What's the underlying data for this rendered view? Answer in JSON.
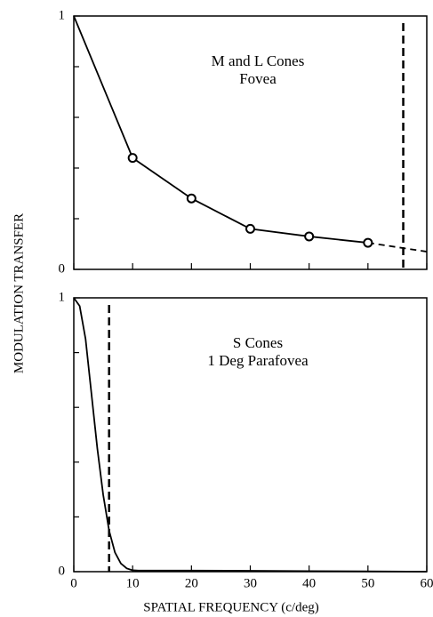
{
  "axis_labels": {
    "y": "MODULATION TRANSFER",
    "x": "SPATIAL FREQUENCY (c/deg)"
  },
  "chart_data": [
    {
      "type": "line",
      "annotation": [
        "M and L Cones",
        "Fovea"
      ],
      "xlim": [
        0,
        60
      ],
      "xticks": [
        0,
        10,
        20,
        30,
        40,
        50,
        60
      ],
      "xtick_labels": false,
      "ylim": [
        0,
        1
      ],
      "yticks": [
        0,
        1
      ],
      "yminor": [
        0.2,
        0.4,
        0.6,
        0.8
      ],
      "series": [
        {
          "color": "#000000",
          "style": "solid",
          "x": [
            0,
            10,
            20,
            30,
            40,
            50
          ],
          "values": [
            1,
            0.44,
            0.28,
            0.16,
            0.13,
            0.105
          ]
        },
        {
          "color": "#000000",
          "style": "dashed",
          "x": [
            50,
            60
          ],
          "values": [
            0.105,
            0.07
          ]
        }
      ],
      "points": {
        "marker": "circle",
        "x": [
          10,
          20,
          30,
          40,
          50
        ],
        "values": [
          0.44,
          0.28,
          0.16,
          0.13,
          0.105
        ]
      },
      "vlines": [
        {
          "x": 56,
          "style": "dashed"
        }
      ]
    },
    {
      "type": "line",
      "annotation": [
        "S Cones",
        "1 Deg Parafovea"
      ],
      "xlim": [
        0,
        60
      ],
      "xticks": [
        0,
        10,
        20,
        30,
        40,
        50,
        60
      ],
      "xtick_labels": true,
      "ylim": [
        0,
        1
      ],
      "yticks": [
        0,
        1
      ],
      "yminor": [
        0.2,
        0.4,
        0.6,
        0.8
      ],
      "series": [
        {
          "color": "#000000",
          "style": "solid",
          "x": [
            0,
            1,
            2,
            3,
            4,
            5,
            6,
            7,
            8,
            9,
            10,
            11,
            20,
            30,
            40,
            50,
            60
          ],
          "values": [
            1,
            0.97,
            0.85,
            0.65,
            0.45,
            0.28,
            0.15,
            0.07,
            0.03,
            0.012,
            0.005,
            0.004,
            0.004,
            0.003,
            0.002,
            0.001,
            0
          ]
        }
      ],
      "vlines": [
        {
          "x": 6,
          "style": "dashed"
        }
      ]
    }
  ]
}
